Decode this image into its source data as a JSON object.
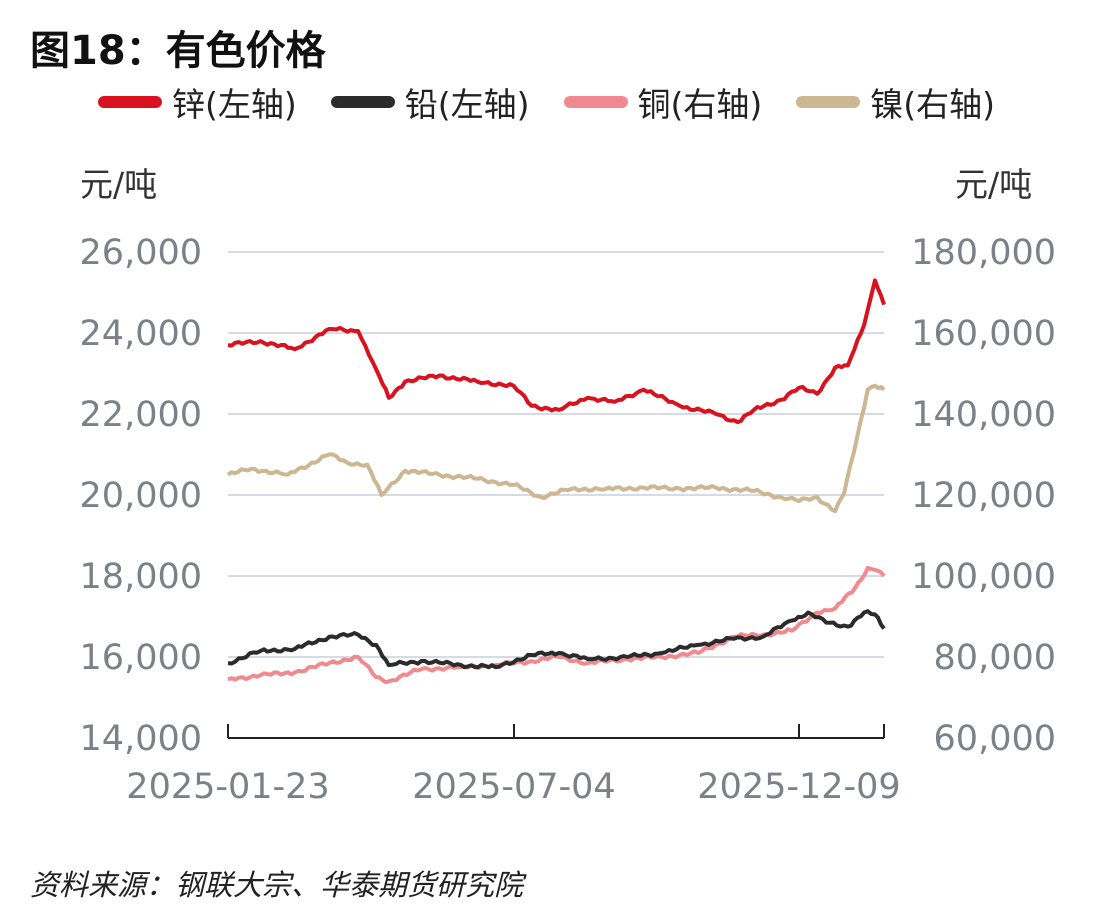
{
  "title": "图18：有色价格",
  "source": "资料来源：钢联大宗、华泰期货研究院",
  "units": {
    "left": "元/吨",
    "right": "元/吨"
  },
  "chart_data": {
    "type": "line",
    "title": "图18：有色价格",
    "x_tick_labels": [
      "2025-01-23",
      "2025-07-04",
      "2025-12-09"
    ],
    "x_range": [
      "2025-01-23",
      "2026-01-21"
    ],
    "left_axis": {
      "unit": "元/吨",
      "ylim": [
        14000,
        26000
      ],
      "ticks": [
        "14,000",
        "16,000",
        "18,000",
        "20,000",
        "22,000",
        "24,000",
        "26,000"
      ]
    },
    "right_axis": {
      "unit": "元/吨",
      "ylim": [
        60000,
        180000
      ],
      "ticks": [
        "60,000",
        "80,000",
        "100,000",
        "120,000",
        "140,000",
        "160,000",
        "180,000"
      ]
    },
    "grid": true,
    "legend_position": "top",
    "series": [
      {
        "name": "锌(左轴)",
        "axis": "left",
        "color": "#d9121f",
        "points": [
          [
            "2025-01-23",
            23700
          ],
          [
            "2025-02-10",
            23800
          ],
          [
            "2025-03-01",
            23600
          ],
          [
            "2025-03-20",
            24100
          ],
          [
            "2025-04-05",
            24050
          ],
          [
            "2025-04-15",
            23100
          ],
          [
            "2025-04-22",
            22400
          ],
          [
            "2025-05-01",
            22800
          ],
          [
            "2025-05-20",
            22950
          ],
          [
            "2025-06-10",
            22800
          ],
          [
            "2025-06-30",
            22700
          ],
          [
            "2025-07-10",
            22200
          ],
          [
            "2025-07-25",
            22100
          ],
          [
            "2025-08-10",
            22400
          ],
          [
            "2025-08-25",
            22300
          ],
          [
            "2025-09-10",
            22600
          ],
          [
            "2025-09-30",
            22200
          ],
          [
            "2025-10-20",
            22000
          ],
          [
            "2025-11-01",
            21800
          ],
          [
            "2025-11-10",
            22100
          ],
          [
            "2025-11-25",
            22350
          ],
          [
            "2025-12-05",
            22650
          ],
          [
            "2025-12-15",
            22500
          ],
          [
            "2025-12-25",
            23150
          ],
          [
            "2026-01-01",
            23200
          ],
          [
            "2026-01-10",
            24200
          ],
          [
            "2026-01-16",
            25300
          ],
          [
            "2026-01-21",
            24700
          ]
        ]
      },
      {
        "name": "铅(左轴)",
        "axis": "left",
        "color": "#2b2b2b",
        "points": [
          [
            "2025-01-23",
            15850
          ],
          [
            "2025-02-10",
            16150
          ],
          [
            "2025-03-01",
            16200
          ],
          [
            "2025-03-20",
            16500
          ],
          [
            "2025-04-05",
            16550
          ],
          [
            "2025-04-15",
            16300
          ],
          [
            "2025-04-22",
            15800
          ],
          [
            "2025-05-10",
            15900
          ],
          [
            "2025-06-01",
            15800
          ],
          [
            "2025-06-20",
            15750
          ],
          [
            "2025-07-10",
            16050
          ],
          [
            "2025-07-25",
            16100
          ],
          [
            "2025-08-10",
            15950
          ],
          [
            "2025-09-01",
            16000
          ],
          [
            "2025-09-20",
            16100
          ],
          [
            "2025-10-10",
            16300
          ],
          [
            "2025-10-30",
            16450
          ],
          [
            "2025-11-15",
            16500
          ],
          [
            "2025-12-01",
            16900
          ],
          [
            "2025-12-10",
            17100
          ],
          [
            "2025-12-20",
            16850
          ],
          [
            "2026-01-01",
            16750
          ],
          [
            "2026-01-10",
            17100
          ],
          [
            "2026-01-16",
            17050
          ],
          [
            "2026-01-21",
            16700
          ]
        ]
      },
      {
        "name": "铜(右轴)",
        "axis": "right",
        "color": "#f08a8f",
        "points": [
          [
            "2025-01-23",
            74500
          ],
          [
            "2025-02-10",
            75500
          ],
          [
            "2025-03-01",
            76200
          ],
          [
            "2025-03-20",
            78500
          ],
          [
            "2025-04-05",
            80000
          ],
          [
            "2025-04-15",
            75000
          ],
          [
            "2025-04-22",
            74000
          ],
          [
            "2025-05-10",
            77000
          ],
          [
            "2025-06-01",
            77500
          ],
          [
            "2025-06-20",
            78000
          ],
          [
            "2025-07-10",
            79000
          ],
          [
            "2025-07-25",
            80000
          ],
          [
            "2025-08-10",
            78500
          ],
          [
            "2025-09-01",
            79500
          ],
          [
            "2025-09-20",
            80000
          ],
          [
            "2025-10-10",
            81000
          ],
          [
            "2025-10-30",
            85000
          ],
          [
            "2025-11-15",
            85500
          ],
          [
            "2025-12-01",
            86500
          ],
          [
            "2025-12-15",
            91000
          ],
          [
            "2025-12-25",
            92000
          ],
          [
            "2026-01-05",
            97000
          ],
          [
            "2026-01-12",
            102000
          ],
          [
            "2026-01-16",
            101500
          ],
          [
            "2026-01-21",
            100000
          ]
        ]
      },
      {
        "name": "镍(右轴)",
        "axis": "right",
        "color": "#cdb793",
        "points": [
          [
            "2025-01-23",
            125000
          ],
          [
            "2025-02-05",
            126500
          ],
          [
            "2025-02-25",
            125000
          ],
          [
            "2025-03-20",
            130000
          ],
          [
            "2025-03-30",
            128000
          ],
          [
            "2025-04-10",
            127500
          ],
          [
            "2025-04-18",
            120000
          ],
          [
            "2025-05-01",
            126000
          ],
          [
            "2025-05-20",
            125000
          ],
          [
            "2025-06-10",
            124000
          ],
          [
            "2025-06-30",
            122500
          ],
          [
            "2025-07-15",
            119500
          ],
          [
            "2025-08-01",
            121500
          ],
          [
            "2025-08-20",
            121500
          ],
          [
            "2025-09-10",
            121800
          ],
          [
            "2025-09-30",
            121600
          ],
          [
            "2025-10-20",
            121800
          ],
          [
            "2025-11-10",
            121000
          ],
          [
            "2025-11-25",
            119500
          ],
          [
            "2025-12-05",
            118500
          ],
          [
            "2025-12-15",
            119500
          ],
          [
            "2025-12-25",
            116000
          ],
          [
            "2025-12-30",
            120500
          ],
          [
            "2026-01-06",
            134000
          ],
          [
            "2026-01-12",
            146000
          ],
          [
            "2026-01-16",
            147000
          ],
          [
            "2026-01-21",
            146000
          ]
        ]
      }
    ]
  }
}
